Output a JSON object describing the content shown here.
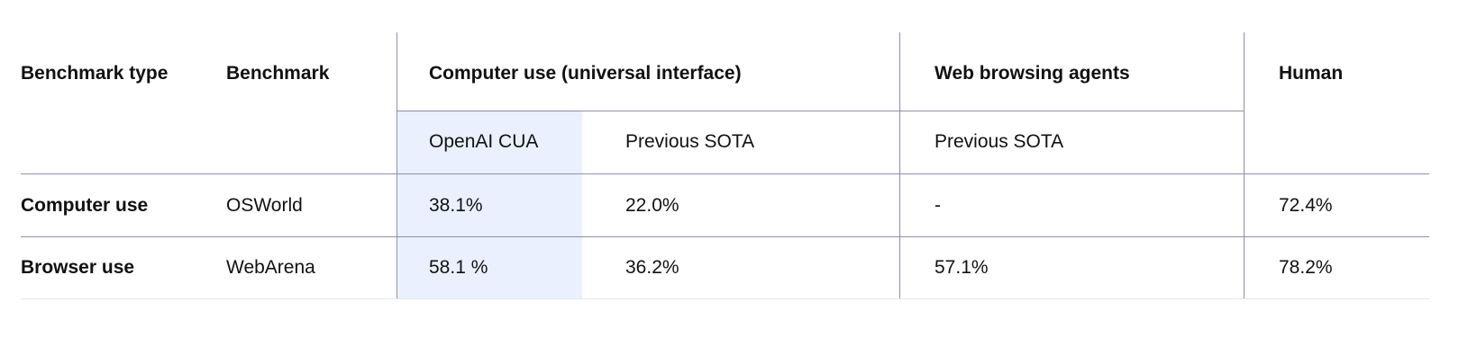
{
  "chart_data": {
    "type": "table",
    "header": {
      "benchmark_type": "Benchmark type",
      "benchmark": "Benchmark",
      "computer_use_group": "Computer use (universal interface)",
      "web_browsing_group": "Web browsing agents",
      "human": "Human",
      "sub_openai_cua": "OpenAI CUA",
      "sub_prev_sota_cu": "Previous SOTA",
      "sub_prev_sota_web": "Previous SOTA"
    },
    "rows": [
      {
        "type": "Computer use",
        "benchmark": "OSWorld",
        "openai_cua": "38.1%",
        "prev_sota_cu": "22.0%",
        "prev_sota_web": "-",
        "human": "72.4%"
      },
      {
        "type": "Browser use",
        "benchmark": "WebArena",
        "openai_cua": "58.1 %",
        "prev_sota_cu": "36.2%",
        "prev_sota_web": "57.1%",
        "human": "78.2%"
      }
    ],
    "highlight_color": "#eaf0fe",
    "line_color": "#8a93a6"
  }
}
